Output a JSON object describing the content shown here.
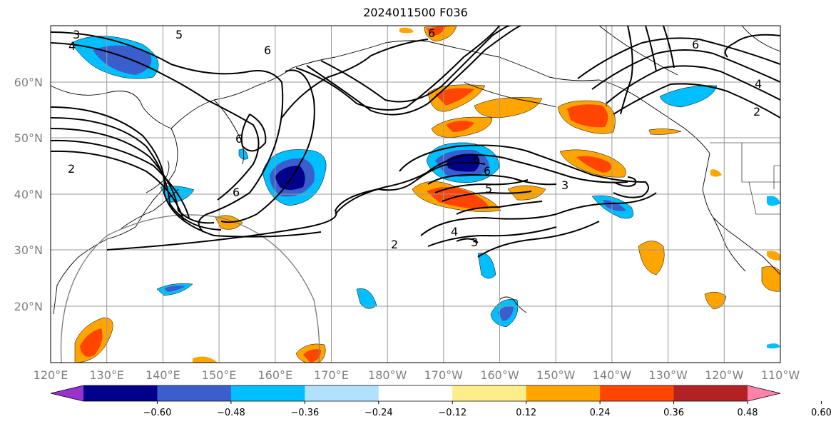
{
  "title": "2024011500 F036",
  "map": {
    "lat_ticks": [
      "60°N",
      "50°N",
      "40°N",
      "30°N",
      "20°N"
    ],
    "lon_ticks": [
      "120°E",
      "130°E",
      "140°E",
      "150°E",
      "160°E",
      "170°E",
      "180°W",
      "170°W",
      "160°W",
      "150°W",
      "140°W",
      "130°W",
      "120°W",
      "110°W"
    ],
    "contour_labels": [
      "3",
      "4",
      "5",
      "6",
      "2",
      "6",
      "6",
      "6",
      "6",
      "6",
      "5",
      "3",
      "4",
      "2",
      "3",
      "6",
      "4",
      "2"
    ]
  },
  "colorbar": {
    "tick_labels": [
      "−0.60",
      "−0.48",
      "−0.36",
      "−0.24",
      "−0.12",
      "0.12",
      "0.24",
      "0.36",
      "0.48",
      "0.60"
    ],
    "colors": [
      "#9932cc",
      "#00008b",
      "#3a5fcd",
      "#00bfff",
      "#b0e2ff",
      "#ffffff",
      "#ffec8b",
      "#ffa500",
      "#ff4500",
      "#b22222",
      "#ff82ab"
    ]
  }
}
